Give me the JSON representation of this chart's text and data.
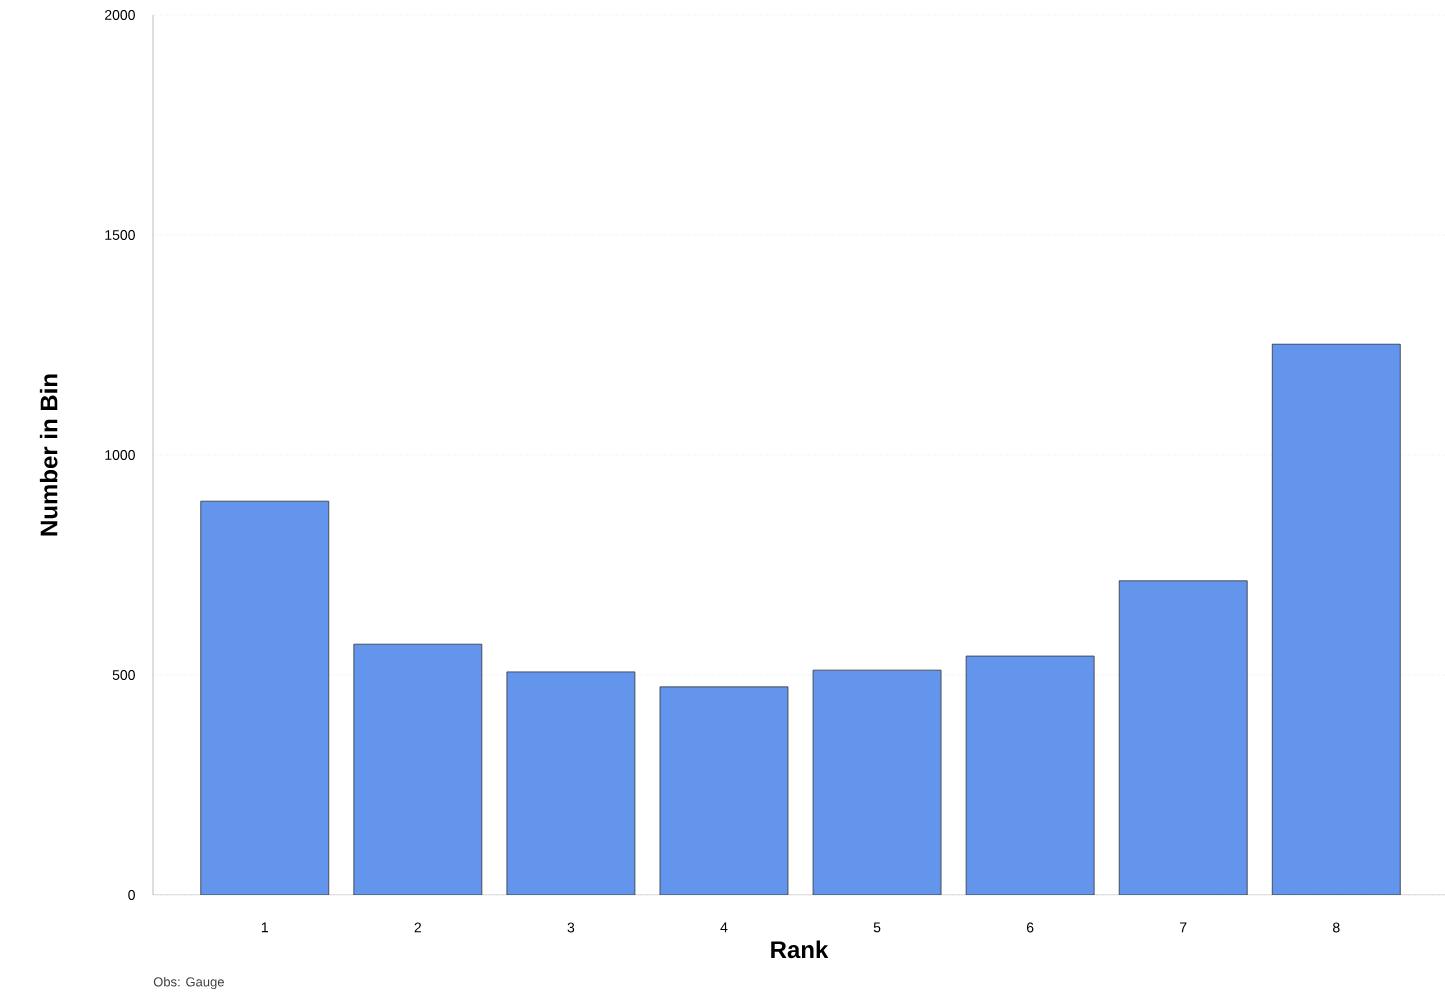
{
  "chart_data": {
    "type": "bar",
    "categories": [
      "1",
      "2",
      "3",
      "4",
      "5",
      "6",
      "7",
      "8"
    ],
    "values": [
      895,
      570,
      507,
      473,
      511,
      543,
      714,
      1252
    ],
    "color": "#6495ed",
    "xlabel": "Rank",
    "ylabel": "Number in Bin",
    "ylim": [
      0,
      2000
    ],
    "yticks": [
      0,
      500,
      1000,
      1500,
      2000
    ],
    "grid": "y",
    "annotations": [
      "Obs: Gauge"
    ]
  }
}
